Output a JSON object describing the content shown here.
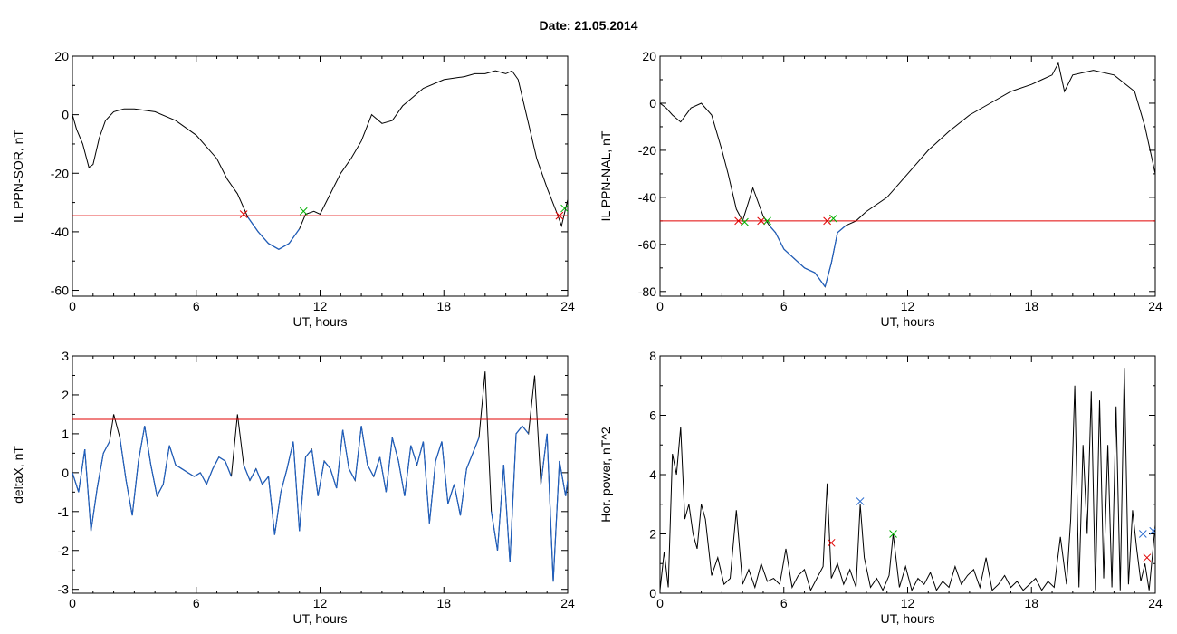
{
  "header": {
    "title": "Date:  21.05.2014"
  },
  "colors": {
    "trace": "#000000",
    "below": "#1f5fbf",
    "threshold": "#e00000",
    "marker_red": "#e00000",
    "marker_green": "#00b000",
    "marker_blue": "#3070d0"
  },
  "chart_data": [
    {
      "type": "line",
      "title": "",
      "xlabel": "UT, hours",
      "ylabel": "IL PPN-SOR, nT",
      "xlim": [
        0,
        24
      ],
      "ylim": [
        -62,
        20
      ],
      "xticks": [
        0,
        6,
        12,
        18,
        24
      ],
      "yticks": [
        -60,
        -40,
        -20,
        0,
        20
      ],
      "threshold": -34.5,
      "series": [
        {
          "x": [
            0,
            0.2,
            0.5,
            0.8,
            1.0,
            1.3,
            1.6,
            2.0,
            2.5,
            3.0,
            4.0,
            5.0,
            6.0,
            7.0,
            7.5,
            8.0,
            8.5,
            9.0,
            9.5,
            10.0,
            10.5,
            11.0,
            11.3,
            11.7,
            12.0,
            12.5,
            13.0,
            13.5,
            14.0,
            14.5,
            15.0,
            15.5,
            16.0,
            16.5,
            17.0,
            18.0,
            19.0,
            19.5,
            20.0,
            20.5,
            21.0,
            21.3,
            21.6,
            22.0,
            22.5,
            23.0,
            23.5,
            23.7,
            24.0
          ],
          "y": [
            0,
            -5,
            -10,
            -18,
            -17,
            -8,
            -2,
            1,
            2,
            2,
            1,
            -2,
            -7,
            -15,
            -22,
            -27,
            -35,
            -40,
            -44,
            -46,
            -44,
            -39,
            -34,
            -33,
            -34,
            -27,
            -20,
            -15,
            -9,
            0,
            -3,
            -2,
            3,
            6,
            9,
            12,
            13,
            14,
            14,
            15,
            14,
            15,
            12,
            0,
            -15,
            -25,
            -34,
            -38,
            -29
          ]
        }
      ],
      "markers": [
        {
          "color": "red",
          "x": 8.3,
          "y": -34
        },
        {
          "color": "green",
          "x": 11.2,
          "y": -33
        },
        {
          "color": "red",
          "x": 23.6,
          "y": -34.5
        },
        {
          "color": "green",
          "x": 23.85,
          "y": -32
        }
      ]
    },
    {
      "type": "line",
      "title": "",
      "xlabel": "UT, hours",
      "ylabel": "IL PPN-NAL, nT",
      "xlim": [
        0,
        24
      ],
      "ylim": [
        -82,
        20
      ],
      "xticks": [
        0,
        6,
        12,
        18,
        24
      ],
      "yticks": [
        -80,
        -60,
        -40,
        -20,
        0,
        20
      ],
      "threshold": -50,
      "series": [
        {
          "x": [
            0,
            0.3,
            0.6,
            1.0,
            1.5,
            2.0,
            2.5,
            3.0,
            3.3,
            3.7,
            4.0,
            4.5,
            5.0,
            5.3,
            5.6,
            6.0,
            6.5,
            7.0,
            7.5,
            8.0,
            8.3,
            8.6,
            9.0,
            9.5,
            10.0,
            11.0,
            12.0,
            13.0,
            14.0,
            15.0,
            16.0,
            17.0,
            18.0,
            18.5,
            19.0,
            19.3,
            19.6,
            20.0,
            21.0,
            22.0,
            23.0,
            23.5,
            24.0
          ],
          "y": [
            0,
            -2,
            -5,
            -8,
            -2,
            0,
            -5,
            -20,
            -30,
            -45,
            -50,
            -36,
            -48,
            -52,
            -55,
            -62,
            -66,
            -70,
            -72,
            -78,
            -68,
            -55,
            -52,
            -50,
            -46,
            -40,
            -30,
            -20,
            -12,
            -5,
            0,
            5,
            8,
            10,
            12,
            17,
            5,
            12,
            14,
            12,
            5,
            -10,
            -30
          ]
        }
      ],
      "markers": [
        {
          "color": "red",
          "x": 3.8,
          "y": -50
        },
        {
          "color": "green",
          "x": 4.1,
          "y": -50.5
        },
        {
          "color": "red",
          "x": 4.9,
          "y": -50
        },
        {
          "color": "green",
          "x": 5.2,
          "y": -50
        },
        {
          "color": "red",
          "x": 8.1,
          "y": -50
        },
        {
          "color": "green",
          "x": 8.4,
          "y": -49
        }
      ]
    },
    {
      "type": "line",
      "title": "",
      "xlabel": "UT, hours",
      "ylabel": "deltaX, nT",
      "xlim": [
        0,
        24
      ],
      "ylim": [
        -3.1,
        3
      ],
      "xticks": [
        0,
        6,
        12,
        18,
        24
      ],
      "yticks": [
        -3,
        -2,
        -1,
        0,
        1,
        2,
        3
      ],
      "threshold": 1.37,
      "series": [
        {
          "x": [
            0,
            0.3,
            0.6,
            0.9,
            1.2,
            1.5,
            1.8,
            2.0,
            2.3,
            2.6,
            2.9,
            3.2,
            3.5,
            3.8,
            4.1,
            4.4,
            4.7,
            5.0,
            5.3,
            5.6,
            5.9,
            6.2,
            6.5,
            6.8,
            7.1,
            7.4,
            7.7,
            8.0,
            8.3,
            8.6,
            8.9,
            9.2,
            9.5,
            9.8,
            10.1,
            10.4,
            10.7,
            11.0,
            11.3,
            11.6,
            11.9,
            12.2,
            12.5,
            12.8,
            13.1,
            13.4,
            13.7,
            14.0,
            14.3,
            14.6,
            14.9,
            15.2,
            15.5,
            15.8,
            16.1,
            16.4,
            16.7,
            17.0,
            17.3,
            17.6,
            17.9,
            18.2,
            18.5,
            18.8,
            19.1,
            19.4,
            19.7,
            20.0,
            20.3,
            20.6,
            20.9,
            21.2,
            21.5,
            21.8,
            22.1,
            22.4,
            22.7,
            23.0,
            23.3,
            23.6,
            23.9,
            24.0
          ],
          "y": [
            0,
            -0.5,
            0.6,
            -1.5,
            -0.4,
            0.5,
            0.8,
            1.5,
            0.9,
            -0.2,
            -1.1,
            0.3,
            1.2,
            0.2,
            -0.6,
            -0.3,
            0.7,
            0.2,
            0.1,
            0.0,
            -0.1,
            0.0,
            -0.3,
            0.1,
            0.4,
            0.3,
            -0.1,
            1.5,
            0.2,
            -0.2,
            0.1,
            -0.3,
            -0.1,
            -1.6,
            -0.5,
            0.1,
            0.8,
            -1.5,
            0.4,
            0.6,
            -0.6,
            0.3,
            0.1,
            -0.4,
            1.1,
            0.1,
            -0.2,
            1.2,
            0.2,
            -0.1,
            0.4,
            -0.5,
            0.9,
            0.3,
            -0.6,
            0.7,
            0.2,
            0.8,
            -1.3,
            0.3,
            0.8,
            -0.8,
            -0.3,
            -1.1,
            0.1,
            0.5,
            0.9,
            2.6,
            -1.0,
            -2.0,
            0.2,
            -2.3,
            1.0,
            1.2,
            1.0,
            2.5,
            -0.3,
            1.0,
            -2.8,
            0.3,
            -0.6,
            -0.2
          ]
        }
      ],
      "markers": []
    },
    {
      "type": "line",
      "title": "",
      "xlabel": "UT, hours",
      "ylabel": "Hor. power, nT^2",
      "xlim": [
        0,
        24
      ],
      "ylim": [
        0,
        8
      ],
      "xticks": [
        0,
        6,
        12,
        18,
        24
      ],
      "yticks": [
        0,
        2,
        4,
        6,
        8
      ],
      "series": [
        {
          "x": [
            0,
            0.2,
            0.4,
            0.6,
            0.8,
            1.0,
            1.2,
            1.4,
            1.6,
            1.8,
            2.0,
            2.2,
            2.5,
            2.8,
            3.1,
            3.4,
            3.7,
            4.0,
            4.3,
            4.6,
            4.9,
            5.2,
            5.5,
            5.8,
            6.1,
            6.4,
            6.7,
            7.0,
            7.3,
            7.6,
            7.9,
            8.1,
            8.3,
            8.6,
            8.9,
            9.2,
            9.5,
            9.7,
            9.9,
            10.2,
            10.5,
            10.8,
            11.1,
            11.3,
            11.6,
            11.9,
            12.2,
            12.5,
            12.8,
            13.1,
            13.4,
            13.7,
            14.0,
            14.3,
            14.6,
            14.9,
            15.2,
            15.5,
            15.8,
            16.1,
            16.4,
            16.7,
            17.0,
            17.3,
            17.6,
            17.9,
            18.2,
            18.5,
            18.8,
            19.1,
            19.4,
            19.7,
            19.9,
            20.1,
            20.3,
            20.5,
            20.7,
            20.9,
            21.1,
            21.3,
            21.5,
            21.7,
            21.9,
            22.1,
            22.3,
            22.5,
            22.7,
            22.9,
            23.1,
            23.3,
            23.5,
            23.7,
            24.0
          ],
          "y": [
            0.1,
            1.4,
            0.2,
            4.7,
            4.0,
            5.6,
            2.5,
            3.0,
            2.0,
            1.5,
            3.0,
            2.5,
            0.6,
            1.2,
            0.3,
            0.5,
            2.8,
            0.3,
            0.8,
            0.2,
            1.0,
            0.4,
            0.5,
            0.3,
            1.5,
            0.2,
            0.6,
            0.8,
            0.1,
            0.5,
            0.9,
            3.7,
            0.5,
            1.0,
            0.3,
            0.8,
            0.2,
            3.0,
            1.2,
            0.2,
            0.5,
            0.1,
            0.6,
            2.0,
            0.2,
            0.9,
            0.1,
            0.5,
            0.3,
            0.7,
            0.1,
            0.4,
            0.2,
            0.9,
            0.3,
            0.6,
            0.8,
            0.2,
            1.2,
            0.1,
            0.3,
            0.6,
            0.2,
            0.4,
            0.1,
            0.3,
            0.5,
            0.1,
            0.4,
            0.2,
            1.9,
            0.3,
            2.5,
            7.0,
            0.2,
            5.0,
            2.0,
            6.8,
            0.1,
            6.5,
            0.5,
            5.0,
            0.2,
            6.3,
            0.1,
            7.6,
            0.3,
            2.8,
            1.5,
            0.4,
            1.0,
            0.1,
            2.3
          ]
        }
      ],
      "markers": [
        {
          "color": "red",
          "x": 8.3,
          "y": 1.7
        },
        {
          "color": "blue",
          "x": 9.7,
          "y": 3.1
        },
        {
          "color": "green",
          "x": 11.3,
          "y": 2.0
        },
        {
          "color": "blue",
          "x": 23.4,
          "y": 2.0
        },
        {
          "color": "red",
          "x": 23.6,
          "y": 1.2
        },
        {
          "color": "blue",
          "x": 23.9,
          "y": 2.1
        }
      ]
    }
  ]
}
